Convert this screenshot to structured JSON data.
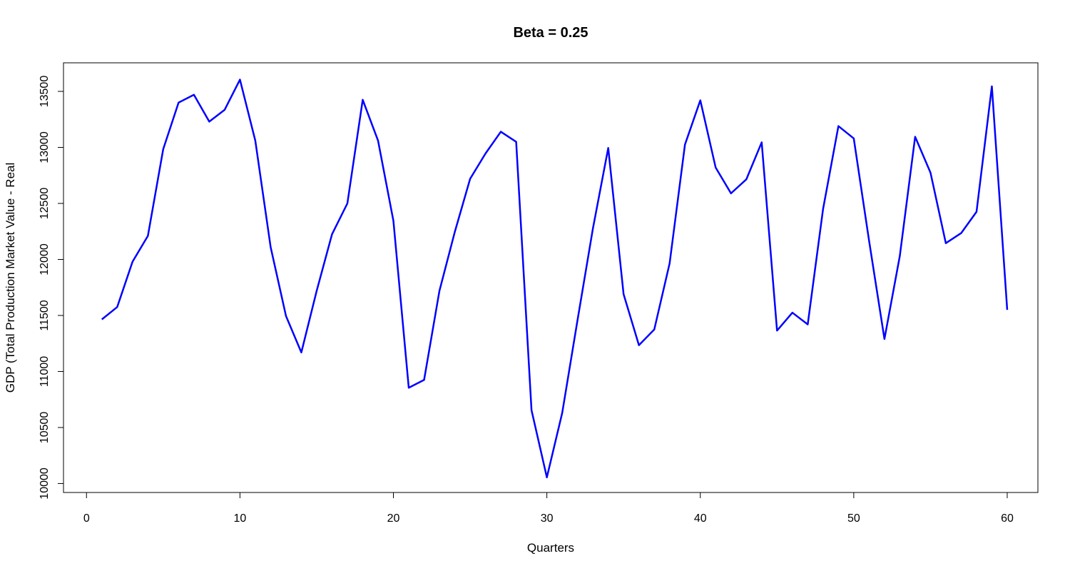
{
  "chart_data": {
    "type": "line",
    "title": "Beta = 0.25",
    "xlabel": "Quarters",
    "ylabel": "GDP (Total Production Market Value - Real",
    "xlim": [
      -1.5,
      62
    ],
    "ylim": [
      9920,
      13755
    ],
    "xticks": [
      0,
      10,
      20,
      30,
      40,
      50,
      60
    ],
    "yticks": [
      10000,
      10500,
      11000,
      11500,
      12000,
      12500,
      13000,
      13500
    ],
    "grid": false,
    "line_color": "#0000ff",
    "series": [
      {
        "x": [
          1,
          2,
          3,
          4,
          5,
          6,
          7,
          8,
          9,
          10,
          11,
          12,
          13,
          14,
          15,
          16,
          17,
          18,
          19,
          20,
          21,
          22,
          23,
          24,
          25,
          26,
          27,
          28,
          29,
          30,
          31,
          32,
          33,
          34,
          35,
          36,
          37,
          38,
          39,
          40,
          41,
          42,
          43,
          44,
          45,
          46,
          47,
          48,
          49,
          50,
          51,
          52,
          53,
          54,
          55,
          56,
          57,
          58,
          59,
          60
        ],
        "values": [
          11465,
          11575,
          11980,
          12210,
          12985,
          13400,
          13470,
          13230,
          13335,
          13605,
          13060,
          12110,
          11495,
          11170,
          11720,
          12225,
          12500,
          13425,
          13060,
          12345,
          10855,
          10925,
          11720,
          12245,
          12720,
          12945,
          13140,
          13050,
          10655,
          10055,
          10630,
          11460,
          12275,
          12995,
          11690,
          11235,
          11375,
          11965,
          13025,
          13420,
          12820,
          12590,
          12715,
          13045,
          11365,
          11525,
          11420,
          12450,
          13190,
          13080,
          12165,
          11290,
          12030,
          13095,
          12775,
          12145,
          12235,
          12425,
          13545,
          11550
        ]
      }
    ]
  }
}
